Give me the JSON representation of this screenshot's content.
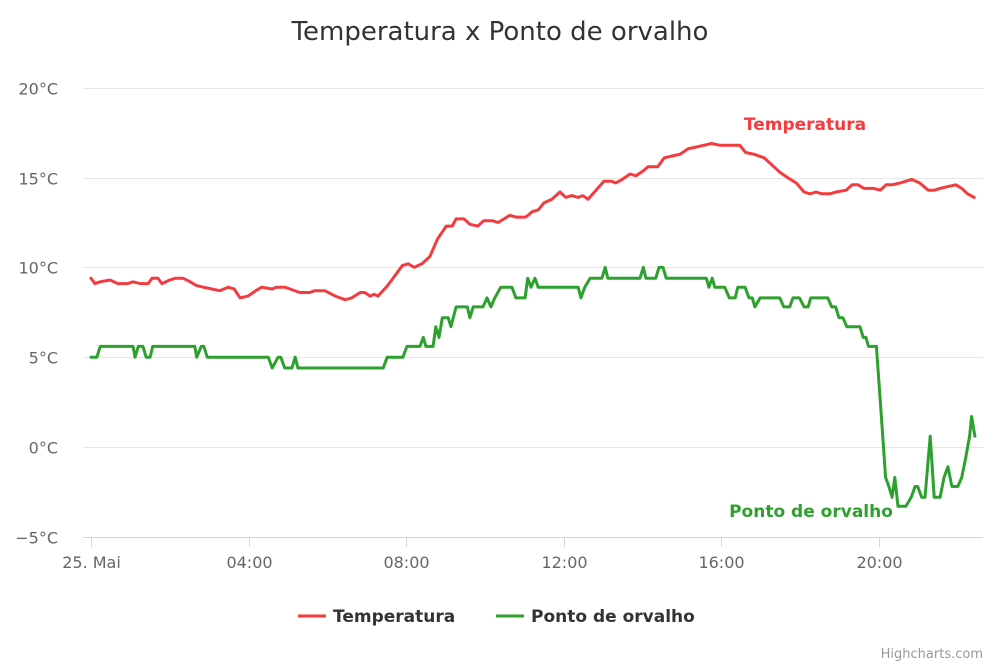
{
  "chart_data": {
    "type": "line",
    "title": "Temperatura x Ponto de orvalho",
    "xlabel": "",
    "ylabel": "",
    "date": "25. Mai",
    "x_tick_labels": [
      "25. Mai",
      "04:00",
      "08:00",
      "12:00",
      "16:00",
      "20:00"
    ],
    "x_tick_hours": [
      0,
      4,
      8,
      12,
      16,
      20
    ],
    "y_tick_labels": [
      "−5°C",
      "0°C",
      "5°C",
      "10°C",
      "15°C",
      "20°C"
    ],
    "y_ticks": [
      -5,
      0,
      5,
      10,
      15,
      20
    ],
    "ylim": [
      -5,
      20
    ],
    "xlim": [
      "00:00",
      "22:30"
    ],
    "grid": "horizontal",
    "legend_position": "bottom",
    "credits": "Highcharts.com",
    "series": [
      {
        "name": "Temperatura",
        "color": "#f43b3f",
        "points": [
          [
            "00:00",
            9.4
          ],
          [
            "00:06",
            9.1
          ],
          [
            "00:14",
            9.2
          ],
          [
            "00:29",
            9.3
          ],
          [
            "00:41",
            9.1
          ],
          [
            "00:56",
            9.1
          ],
          [
            "01:04",
            9.2
          ],
          [
            "01:15",
            9.1
          ],
          [
            "01:27",
            9.1
          ],
          [
            "01:33",
            9.4
          ],
          [
            "01:42",
            9.4
          ],
          [
            "01:48",
            9.1
          ],
          [
            "02:00",
            9.3
          ],
          [
            "02:09",
            9.4
          ],
          [
            "02:20",
            9.4
          ],
          [
            "02:31",
            9.2
          ],
          [
            "02:40",
            9.0
          ],
          [
            "02:51",
            8.9
          ],
          [
            "03:04",
            8.8
          ],
          [
            "03:16",
            8.7
          ],
          [
            "03:29",
            8.9
          ],
          [
            "03:38",
            8.8
          ],
          [
            "03:47",
            8.3
          ],
          [
            "03:59",
            8.4
          ],
          [
            "04:11",
            8.7
          ],
          [
            "04:20",
            8.9
          ],
          [
            "04:36",
            8.8
          ],
          [
            "04:42",
            8.9
          ],
          [
            "04:55",
            8.9
          ],
          [
            "05:03",
            8.8
          ],
          [
            "05:18",
            8.6
          ],
          [
            "05:33",
            8.6
          ],
          [
            "05:41",
            8.7
          ],
          [
            "05:56",
            8.7
          ],
          [
            "06:12",
            8.4
          ],
          [
            "06:27",
            8.2
          ],
          [
            "06:37",
            8.3
          ],
          [
            "06:50",
            8.6
          ],
          [
            "06:57",
            8.6
          ],
          [
            "07:05",
            8.4
          ],
          [
            "07:11",
            8.5
          ],
          [
            "07:17",
            8.4
          ],
          [
            "07:32",
            9.0
          ],
          [
            "07:44",
            9.6
          ],
          [
            "07:54",
            10.1
          ],
          [
            "08:03",
            10.2
          ],
          [
            "08:12",
            10.0
          ],
          [
            "08:24",
            10.2
          ],
          [
            "08:36",
            10.6
          ],
          [
            "08:48",
            11.6
          ],
          [
            "09:01",
            12.3
          ],
          [
            "09:10",
            12.3
          ],
          [
            "09:16",
            12.7
          ],
          [
            "09:28",
            12.7
          ],
          [
            "09:37",
            12.4
          ],
          [
            "09:49",
            12.3
          ],
          [
            "09:58",
            12.6
          ],
          [
            "10:11",
            12.6
          ],
          [
            "10:20",
            12.5
          ],
          [
            "10:29",
            12.7
          ],
          [
            "10:38",
            12.9
          ],
          [
            "10:47",
            12.8
          ],
          [
            "11:02",
            12.8
          ],
          [
            "11:12",
            13.1
          ],
          [
            "11:21",
            13.2
          ],
          [
            "11:30",
            13.6
          ],
          [
            "11:42",
            13.8
          ],
          [
            "11:54",
            14.2
          ],
          [
            "12:03",
            13.9
          ],
          [
            "12:12",
            14.0
          ],
          [
            "12:22",
            13.9
          ],
          [
            "12:29",
            14.0
          ],
          [
            "12:37",
            13.8
          ],
          [
            "12:49",
            14.3
          ],
          [
            "13:01",
            14.8
          ],
          [
            "13:13",
            14.8
          ],
          [
            "13:19",
            14.7
          ],
          [
            "13:29",
            14.9
          ],
          [
            "13:41",
            15.2
          ],
          [
            "13:50",
            15.1
          ],
          [
            "14:02",
            15.4
          ],
          [
            "14:08",
            15.6
          ],
          [
            "14:23",
            15.6
          ],
          [
            "14:33",
            16.1
          ],
          [
            "14:45",
            16.2
          ],
          [
            "14:57",
            16.3
          ],
          [
            "15:09",
            16.6
          ],
          [
            "15:21",
            16.7
          ],
          [
            "15:33",
            16.8
          ],
          [
            "15:45",
            16.9
          ],
          [
            "15:58",
            16.8
          ],
          [
            "16:28",
            16.8
          ],
          [
            "16:37",
            16.4
          ],
          [
            "16:50",
            16.3
          ],
          [
            "17:05",
            16.1
          ],
          [
            "17:17",
            15.7
          ],
          [
            "17:29",
            15.3
          ],
          [
            "17:41",
            15.0
          ],
          [
            "17:54",
            14.7
          ],
          [
            "18:06",
            14.2
          ],
          [
            "18:15",
            14.1
          ],
          [
            "18:24",
            14.2
          ],
          [
            "18:33",
            14.1
          ],
          [
            "18:45",
            14.1
          ],
          [
            "18:55",
            14.2
          ],
          [
            "19:10",
            14.3
          ],
          [
            "19:19",
            14.6
          ],
          [
            "19:28",
            14.6
          ],
          [
            "19:37",
            14.4
          ],
          [
            "19:52",
            14.4
          ],
          [
            "20:02",
            14.3
          ],
          [
            "20:11",
            14.6
          ],
          [
            "20:20",
            14.6
          ],
          [
            "20:32",
            14.7
          ],
          [
            "20:41",
            14.8
          ],
          [
            "20:50",
            14.9
          ],
          [
            "21:02",
            14.7
          ],
          [
            "21:15",
            14.3
          ],
          [
            "21:24",
            14.3
          ],
          [
            "21:33",
            14.4
          ],
          [
            "21:45",
            14.5
          ],
          [
            "21:57",
            14.6
          ],
          [
            "22:06",
            14.4
          ],
          [
            "22:15",
            14.1
          ],
          [
            "22:25",
            13.9
          ]
        ]
      },
      {
        "name": "Ponto de orvalho",
        "color": "#2da12d",
        "points": [
          [
            "00:00",
            5.0
          ],
          [
            "00:09",
            5.0
          ],
          [
            "00:14",
            5.6
          ],
          [
            "01:04",
            5.6
          ],
          [
            "01:07",
            5.0
          ],
          [
            "01:12",
            5.6
          ],
          [
            "01:19",
            5.6
          ],
          [
            "01:24",
            5.0
          ],
          [
            "01:30",
            5.0
          ],
          [
            "01:34",
            5.6
          ],
          [
            "02:38",
            5.6
          ],
          [
            "02:41",
            5.0
          ],
          [
            "02:48",
            5.6
          ],
          [
            "02:52",
            5.6
          ],
          [
            "02:57",
            5.0
          ],
          [
            "04:30",
            5.0
          ],
          [
            "04:36",
            4.4
          ],
          [
            "04:45",
            5.0
          ],
          [
            "04:49",
            5.0
          ],
          [
            "04:55",
            4.4
          ],
          [
            "05:06",
            4.4
          ],
          [
            "05:11",
            5.0
          ],
          [
            "05:15",
            4.4
          ],
          [
            "07:25",
            4.4
          ],
          [
            "07:31",
            5.0
          ],
          [
            "07:55",
            5.0
          ],
          [
            "08:01",
            5.6
          ],
          [
            "08:21",
            5.6
          ],
          [
            "08:26",
            6.1
          ],
          [
            "08:30",
            5.6
          ],
          [
            "08:41",
            5.6
          ],
          [
            "08:45",
            6.7
          ],
          [
            "08:50",
            6.1
          ],
          [
            "08:55",
            7.2
          ],
          [
            "09:04",
            7.2
          ],
          [
            "09:08",
            6.7
          ],
          [
            "09:16",
            7.8
          ],
          [
            "09:33",
            7.8
          ],
          [
            "09:37",
            7.2
          ],
          [
            "09:42",
            7.8
          ],
          [
            "09:57",
            7.8
          ],
          [
            "10:03",
            8.3
          ],
          [
            "10:09",
            7.8
          ],
          [
            "10:15",
            8.3
          ],
          [
            "10:24",
            8.9
          ],
          [
            "10:41",
            8.9
          ],
          [
            "10:47",
            8.3
          ],
          [
            "11:01",
            8.3
          ],
          [
            "11:05",
            9.4
          ],
          [
            "11:10",
            8.9
          ],
          [
            "11:16",
            9.4
          ],
          [
            "11:21",
            8.9
          ],
          [
            "12:22",
            8.9
          ],
          [
            "12:26",
            8.3
          ],
          [
            "12:32",
            8.9
          ],
          [
            "12:40",
            9.4
          ],
          [
            "12:58",
            9.4
          ],
          [
            "13:03",
            10.0
          ],
          [
            "13:07",
            9.4
          ],
          [
            "13:56",
            9.4
          ],
          [
            "14:01",
            10.0
          ],
          [
            "14:05",
            9.4
          ],
          [
            "14:20",
            9.4
          ],
          [
            "14:25",
            10.0
          ],
          [
            "14:31",
            10.0
          ],
          [
            "14:36",
            9.4
          ],
          [
            "15:37",
            9.4
          ],
          [
            "15:41",
            8.9
          ],
          [
            "15:46",
            9.4
          ],
          [
            "15:50",
            8.9
          ],
          [
            "16:05",
            8.9
          ],
          [
            "16:12",
            8.3
          ],
          [
            "16:21",
            8.3
          ],
          [
            "16:25",
            8.9
          ],
          [
            "16:36",
            8.9
          ],
          [
            "16:42",
            8.3
          ],
          [
            "16:47",
            8.3
          ],
          [
            "16:51",
            7.8
          ],
          [
            "16:59",
            8.3
          ],
          [
            "17:29",
            8.3
          ],
          [
            "17:35",
            7.8
          ],
          [
            "17:44",
            7.8
          ],
          [
            "17:49",
            8.3
          ],
          [
            "17:59",
            8.3
          ],
          [
            "18:06",
            7.8
          ],
          [
            "18:12",
            7.8
          ],
          [
            "18:16",
            8.3
          ],
          [
            "18:42",
            8.3
          ],
          [
            "18:48",
            7.8
          ],
          [
            "18:54",
            7.8
          ],
          [
            "18:59",
            7.2
          ],
          [
            "19:05",
            7.2
          ],
          [
            "19:11",
            6.7
          ],
          [
            "19:31",
            6.7
          ],
          [
            "19:36",
            6.1
          ],
          [
            "19:40",
            6.1
          ],
          [
            "19:44",
            5.6
          ],
          [
            "19:56",
            5.6
          ],
          [
            "20:03",
            2.0
          ],
          [
            "20:10",
            -1.7
          ],
          [
            "20:15",
            -2.2
          ],
          [
            "20:20",
            -2.8
          ],
          [
            "20:24",
            -1.7
          ],
          [
            "20:29",
            -3.3
          ],
          [
            "20:41",
            -3.3
          ],
          [
            "20:49",
            -2.8
          ],
          [
            "20:55",
            -2.2
          ],
          [
            "20:59",
            -2.2
          ],
          [
            "21:05",
            -2.8
          ],
          [
            "21:10",
            -2.8
          ],
          [
            "21:18",
            0.6
          ],
          [
            "21:24",
            -2.8
          ],
          [
            "21:33",
            -2.8
          ],
          [
            "21:39",
            -1.7
          ],
          [
            "21:45",
            -1.1
          ],
          [
            "21:51",
            -2.2
          ],
          [
            "22:00",
            -2.2
          ],
          [
            "22:06",
            -1.7
          ],
          [
            "22:12",
            -0.6
          ],
          [
            "22:18",
            0.6
          ],
          [
            "22:21",
            1.7
          ],
          [
            "22:26",
            0.6
          ]
        ]
      }
    ]
  }
}
